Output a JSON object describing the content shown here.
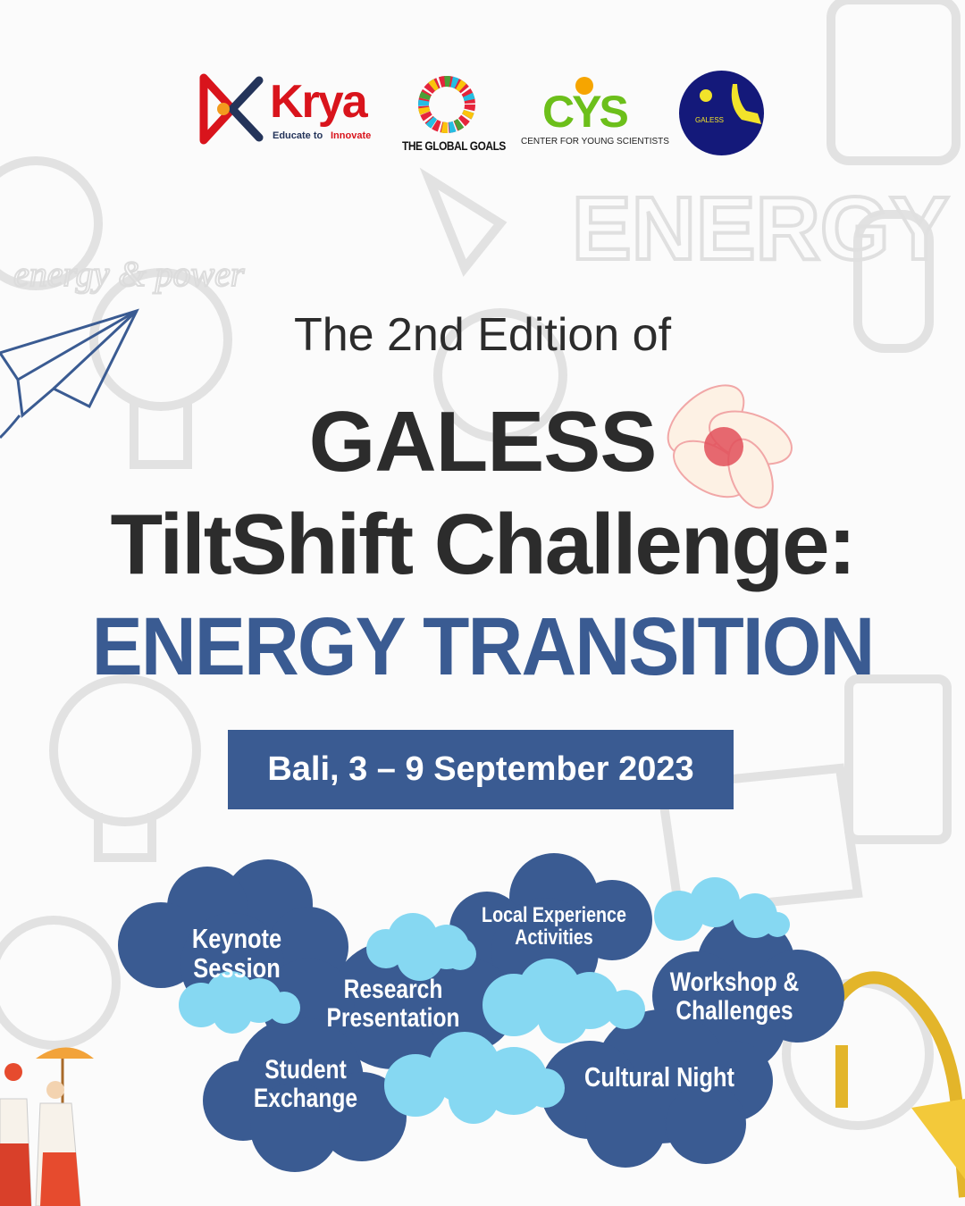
{
  "logos": {
    "krya": {
      "name": "Krya",
      "tagline_a": "Educate to",
      "tagline_b": "Innovate"
    },
    "global_goals": {
      "name": "THE GLOBAL GOALS"
    },
    "cys": {
      "name": "CYS",
      "subtitle": "CENTER FOR YOUNG SCIENTISTS"
    },
    "galess": {
      "name": "GALESS"
    }
  },
  "headline": {
    "edition": "The 2nd Edition of",
    "event": "GALESS",
    "challenge": "TiltShift Challenge:",
    "theme": "ENERGY TRANSITION"
  },
  "banner": {
    "text": "Bali, 3 – 9 September 2023"
  },
  "activities": [
    {
      "label_1": "Keynote Session",
      "label_2": ""
    },
    {
      "label_1": "Local Experience",
      "label_2": "Activities"
    },
    {
      "label_1": "Research",
      "label_2": "Presentation"
    },
    {
      "label_1": "Workshop &",
      "label_2": "Challenges"
    },
    {
      "label_1": "Student",
      "label_2": "Exchange"
    },
    {
      "label_1": "Cultural Night",
      "label_2": ""
    }
  ],
  "background_doodle_words": [
    "ENERGY",
    "energy & power"
  ],
  "colors": {
    "primary_blue": "#3a5b92",
    "light_blue": "#86d8f2",
    "text_dark": "#2c2c2c",
    "krya_red": "#d9141c",
    "cys_green": "#6cbf1a",
    "cys_orange": "#f6a500",
    "galess_navy": "#14197a"
  }
}
